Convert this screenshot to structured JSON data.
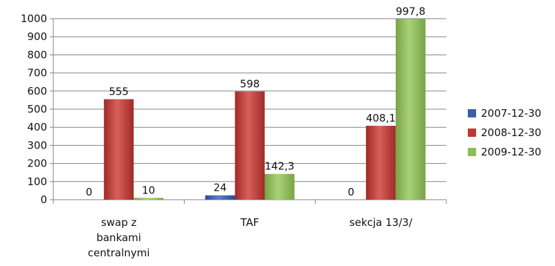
{
  "chart_data": {
    "type": "bar",
    "title": "",
    "xlabel": "",
    "ylabel": "",
    "ylim": [
      0,
      1000
    ],
    "yticks": [
      0,
      100,
      200,
      300,
      400,
      500,
      600,
      700,
      800,
      900,
      1000
    ],
    "grid": "horizontal",
    "legend_position": "right",
    "categories": [
      [
        "swap z",
        "bankami",
        "centralnymi"
      ],
      [
        "TAF"
      ],
      [
        "sekcja 13/3/"
      ]
    ],
    "series": [
      {
        "name": "2007-12-30",
        "color": "#3c5ea8",
        "values": [
          0,
          24,
          0
        ],
        "labels": [
          "0",
          "24",
          "0"
        ]
      },
      {
        "name": "2008-12-30",
        "color": "#bc3a36",
        "values": [
          555,
          598,
          408.1
        ],
        "labels": [
          "555",
          "598",
          "408,1"
        ]
      },
      {
        "name": "2009-12-30",
        "color": "#8fbd5a",
        "values": [
          10,
          142.3,
          997.8
        ],
        "labels": [
          "10",
          "142,3",
          "997,8"
        ]
      }
    ]
  }
}
